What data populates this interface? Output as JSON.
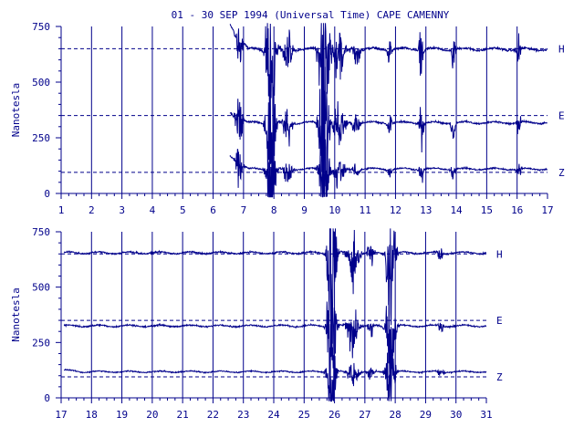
{
  "title": "01 - 30 SEP 1994 (Universal Time) CAPE CAMENNY",
  "colors": {
    "ink": "#00008b",
    "background": "#ffffff"
  },
  "chart_data": [
    {
      "type": "line",
      "panel": "top",
      "xlabel": "",
      "ylabel": "Nanotesla",
      "xlim": [
        1,
        17
      ],
      "ylim": [
        0,
        750
      ],
      "x_ticks": [
        1,
        2,
        3,
        4,
        5,
        6,
        7,
        8,
        9,
        10,
        11,
        12,
        13,
        14,
        15,
        16,
        17
      ],
      "y_ticks": [
        0,
        250,
        500,
        750
      ],
      "grid": "vertical lines at each day",
      "data_start_day": 6.55,
      "series": [
        {
          "name": "H",
          "baseline": 650,
          "level": 648,
          "start_level": 760,
          "spread": 14
        },
        {
          "name": "E",
          "baseline": 350,
          "level": 318,
          "start_level": 365,
          "spread": 12
        },
        {
          "name": "Z",
          "baseline": 95,
          "level": 110,
          "start_level": 170,
          "spread": 10
        }
      ],
      "disturbances": [
        {
          "day": 6.85,
          "amplitude": 110,
          "width": 0.15
        },
        {
          "day": 7.9,
          "amplitude": 300,
          "width": 0.2
        },
        {
          "day": 8.45,
          "amplitude": 80,
          "width": 0.2
        },
        {
          "day": 9.65,
          "amplitude": 330,
          "width": 0.22
        },
        {
          "day": 10.15,
          "amplitude": 100,
          "width": 0.25
        },
        {
          "day": 10.7,
          "amplitude": 40,
          "width": 0.2
        },
        {
          "day": 11.8,
          "amplitude": 50,
          "width": 0.1
        },
        {
          "day": 12.85,
          "amplitude": 100,
          "width": 0.1
        },
        {
          "day": 13.9,
          "amplitude": 60,
          "width": 0.1
        },
        {
          "day": 16.05,
          "amplitude": 60,
          "width": 0.1
        }
      ]
    },
    {
      "type": "line",
      "panel": "bottom",
      "xlabel": "",
      "ylabel": "Nanotesla",
      "xlim": [
        17,
        31
      ],
      "ylim": [
        0,
        750
      ],
      "x_ticks": [
        17,
        18,
        19,
        20,
        21,
        22,
        23,
        24,
        25,
        26,
        27,
        28,
        29,
        30,
        31
      ],
      "y_ticks": [
        0,
        250,
        500,
        750
      ],
      "grid": "vertical lines at each day",
      "data_start_day": 17.1,
      "series": [
        {
          "name": "H",
          "baseline": 650,
          "level": 655,
          "start_level": 655,
          "spread": 10
        },
        {
          "name": "E",
          "baseline": 350,
          "level": 325,
          "start_level": 325,
          "spread": 10
        },
        {
          "name": "Z",
          "baseline": 95,
          "level": 118,
          "start_level": 125,
          "spread": 8
        }
      ],
      "disturbances": [
        {
          "day": 25.9,
          "amplitude": 340,
          "width": 0.18
        },
        {
          "day": 26.6,
          "amplitude": 90,
          "width": 0.25
        },
        {
          "day": 27.2,
          "amplitude": 50,
          "width": 0.15
        },
        {
          "day": 27.85,
          "amplitude": 220,
          "width": 0.2
        },
        {
          "day": 29.5,
          "amplitude": 25,
          "width": 0.15
        }
      ]
    }
  ]
}
